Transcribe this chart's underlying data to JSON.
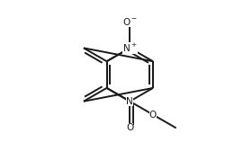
{
  "bg": "#ffffff",
  "lc": "#1a1a1a",
  "lw": 1.4,
  "fs": 7.5,
  "BL": 1.0,
  "ring_cx_r": 2.8,
  "ring_cy_r": 0.0,
  "xlim": [
    -1.5,
    5.8
  ],
  "ylim": [
    -3.2,
    2.8
  ]
}
